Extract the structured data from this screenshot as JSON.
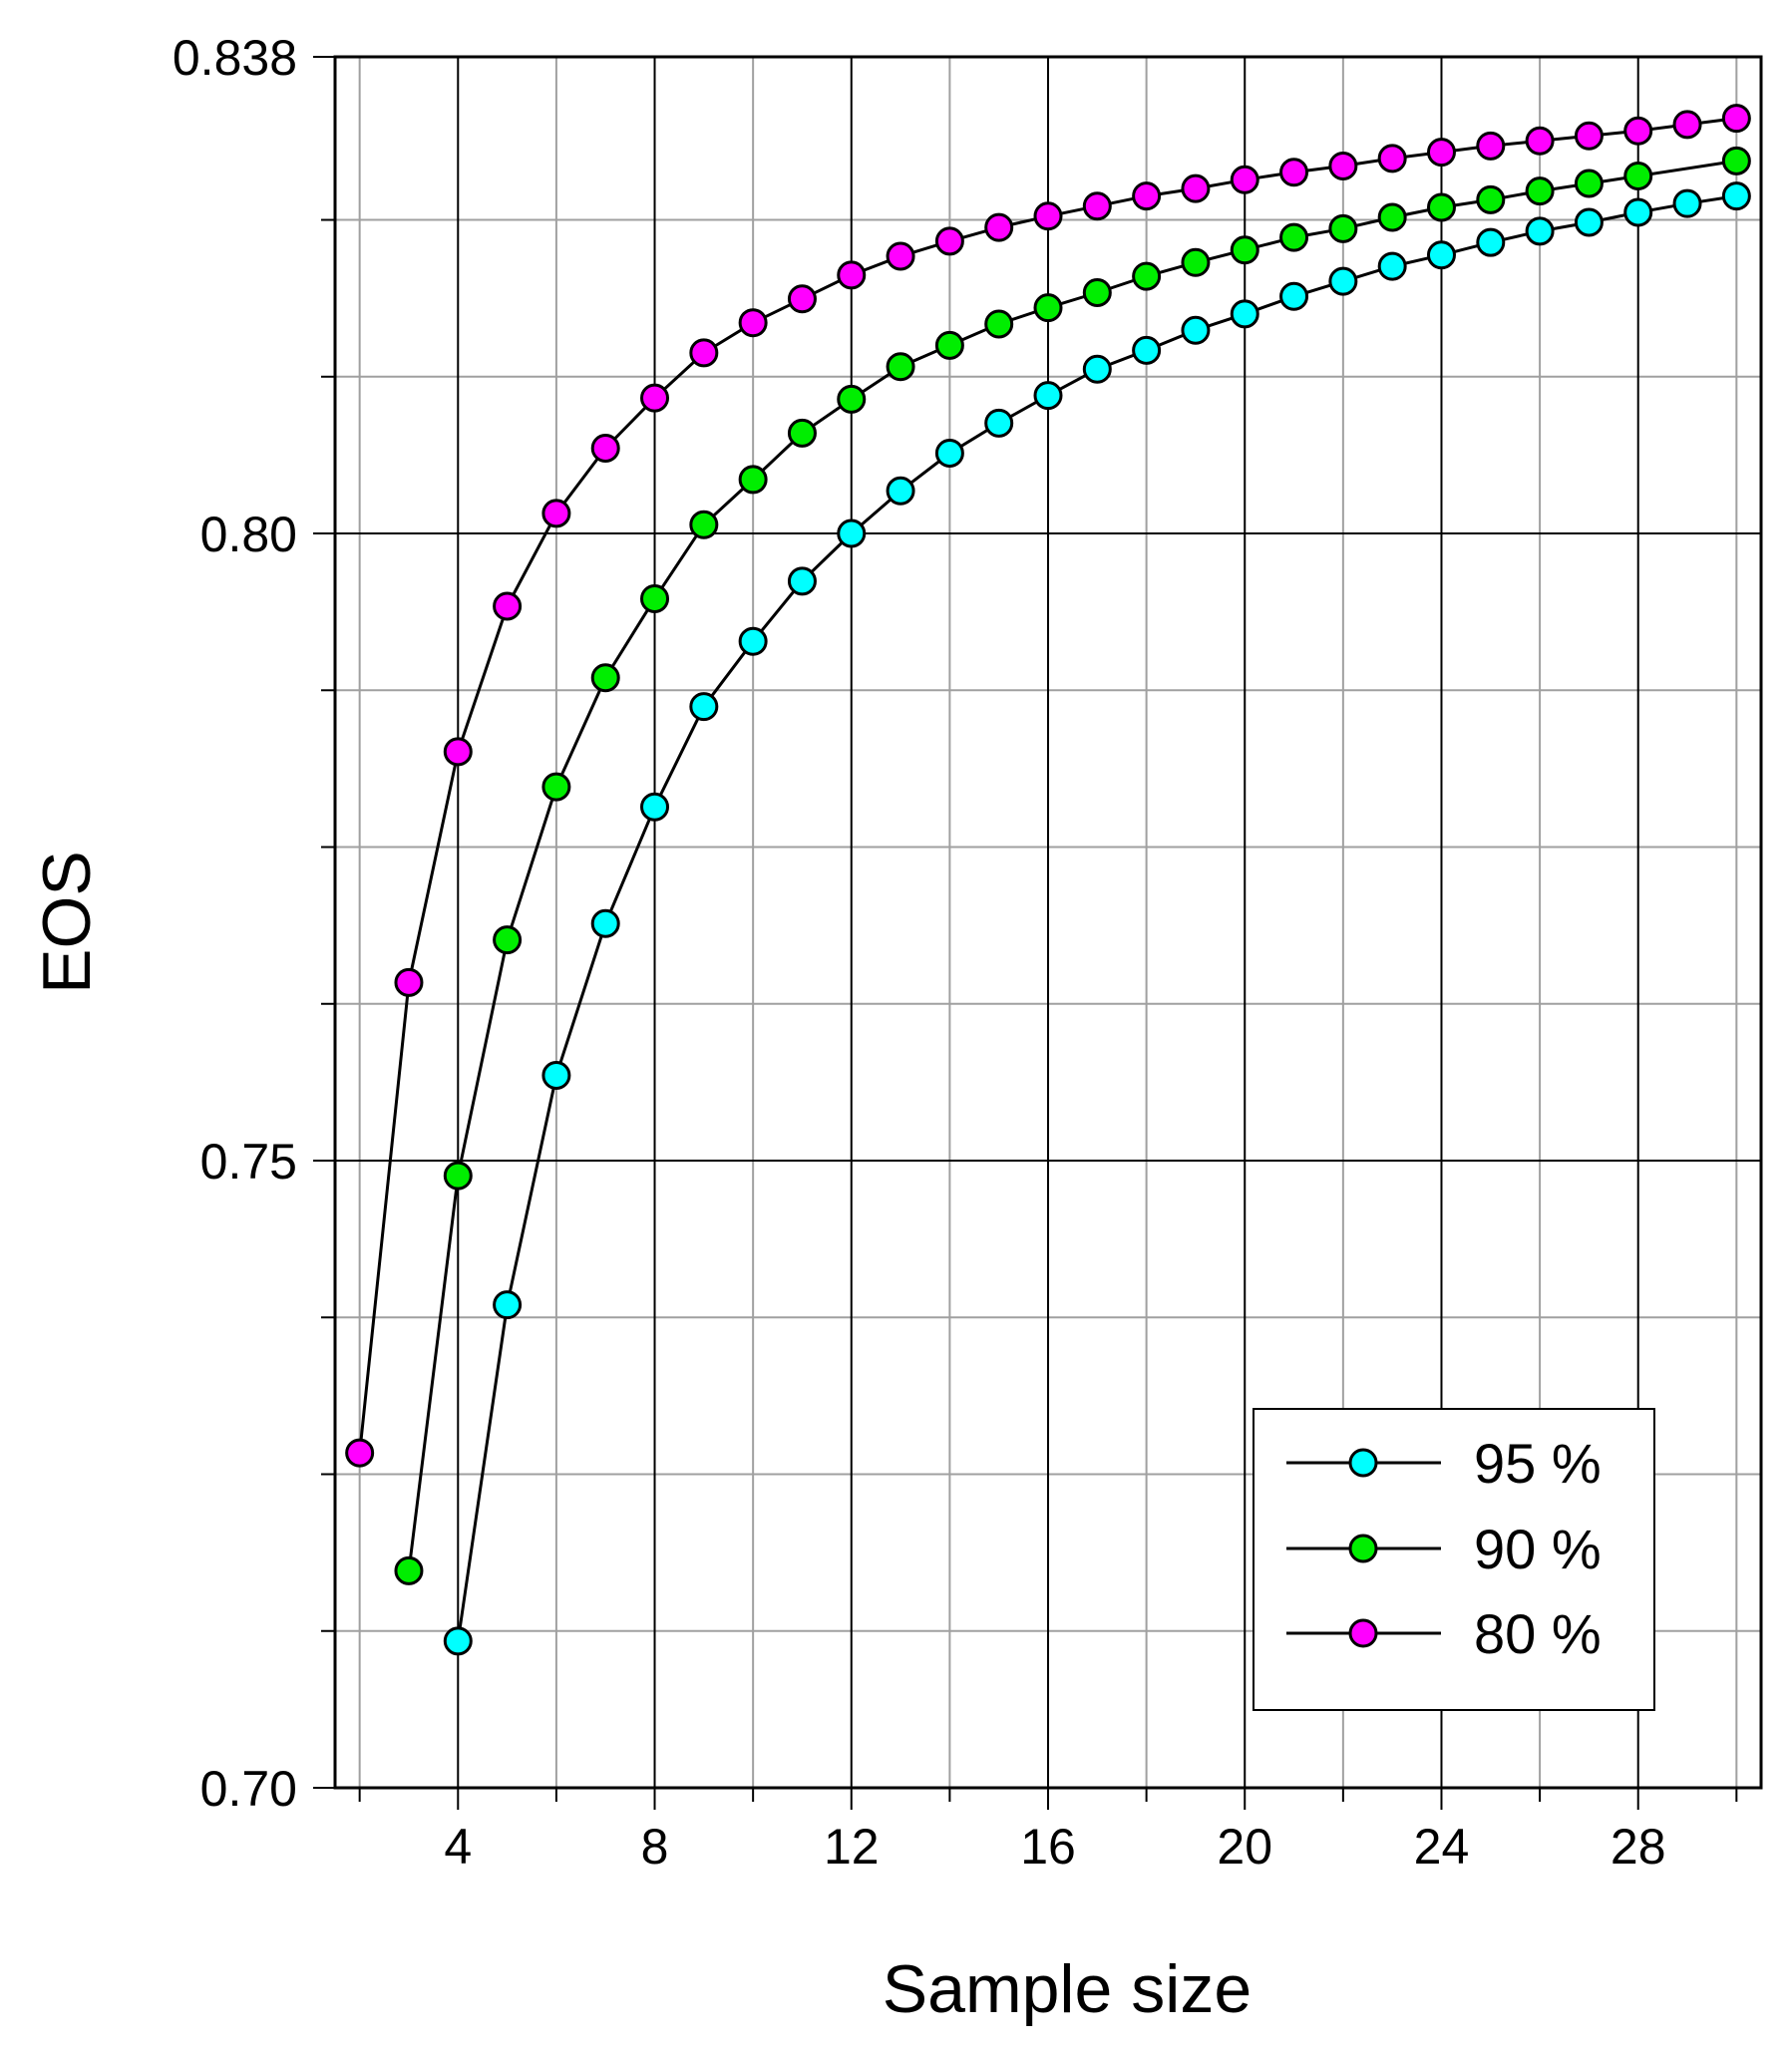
{
  "chart_data": {
    "type": "line",
    "xlabel": "Sample size",
    "ylabel": "EOS",
    "xlim": [
      1.5,
      30.5
    ],
    "ylim": [
      0.7,
      0.838
    ],
    "x_ticks": [
      4,
      8,
      12,
      16,
      20,
      24,
      28
    ],
    "x_tick_labels": [
      "4",
      "8",
      "12",
      "16",
      "20",
      "24",
      "28"
    ],
    "y_ticks": [
      0.7,
      0.75,
      0.8,
      0.838
    ],
    "y_tick_labels": [
      "0.70",
      "0.75",
      "0.80",
      "0.838"
    ],
    "grid": true,
    "legend_position": "bottom-right",
    "series": [
      {
        "name": "95 %",
        "color": "#00ffff",
        "x": [
          4,
          5,
          6,
          7,
          8,
          9,
          10,
          11,
          12,
          13,
          14,
          15,
          16,
          17,
          18,
          19,
          20,
          21,
          22,
          23,
          24,
          25,
          26,
          27,
          28,
          29,
          30
        ],
        "y": [
          0.7117,
          0.7385,
          0.7568,
          0.7689,
          0.7782,
          0.7862,
          0.7914,
          0.7962,
          0.8,
          0.8034,
          0.8064,
          0.8088,
          0.811,
          0.8131,
          0.8146,
          0.8162,
          0.8175,
          0.8189,
          0.8201,
          0.8213,
          0.8222,
          0.8232,
          0.8241,
          0.8248,
          0.8256,
          0.8263,
          0.8269
        ]
      },
      {
        "name": "90 %",
        "color": "#00ee00",
        "x": [
          3,
          4,
          5,
          6,
          7,
          8,
          9,
          10,
          11,
          12,
          13,
          14,
          15,
          16,
          17,
          18,
          19,
          20,
          21,
          22,
          23,
          24,
          25,
          26,
          27,
          28,
          30
        ],
        "y": [
          0.7173,
          0.7488,
          0.7676,
          0.7798,
          0.7885,
          0.7948,
          0.8007,
          0.8043,
          0.808,
          0.8107,
          0.8133,
          0.815,
          0.8167,
          0.818,
          0.8192,
          0.8205,
          0.8216,
          0.8226,
          0.8236,
          0.8243,
          0.8252,
          0.826,
          0.8266,
          0.8273,
          0.8279,
          0.8285,
          0.8297
        ]
      },
      {
        "name": "80 %",
        "color": "#ff00ff",
        "x": [
          2,
          3,
          4,
          5,
          6,
          7,
          8,
          9,
          10,
          11,
          12,
          13,
          14,
          15,
          16,
          17,
          18,
          19,
          20,
          21,
          22,
          23,
          24,
          25,
          26,
          27,
          28,
          29,
          30
        ],
        "y": [
          0.7267,
          0.7642,
          0.7826,
          0.7942,
          0.8016,
          0.8068,
          0.8108,
          0.8144,
          0.8168,
          0.8187,
          0.8206,
          0.8221,
          0.8233,
          0.8244,
          0.8253,
          0.8261,
          0.8269,
          0.8275,
          0.8282,
          0.8288,
          0.8293,
          0.8299,
          0.8304,
          0.8309,
          0.8313,
          0.8317,
          0.8321,
          0.8326,
          0.8331
        ]
      }
    ]
  }
}
